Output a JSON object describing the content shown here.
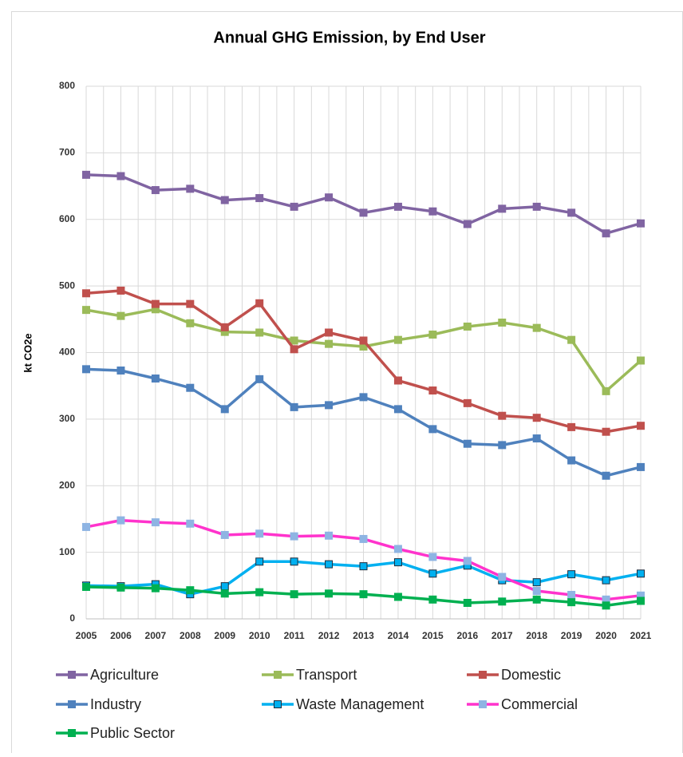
{
  "chart_data": {
    "type": "line",
    "title": "Annual GHG Emission, by End User",
    "ylabel": "kt CO2e",
    "categories": [
      "2005",
      "2006",
      "2007",
      "2008",
      "2009",
      "2010",
      "2011",
      "2012",
      "2013",
      "2014",
      "2015",
      "2016",
      "2017",
      "2018",
      "2019",
      "2020",
      "2021"
    ],
    "ylim": [
      0,
      800
    ],
    "yticks": [
      0,
      100,
      200,
      300,
      400,
      500,
      600,
      700,
      800
    ],
    "grid": true,
    "legend": "bottom",
    "series": [
      {
        "name": "Agriculture",
        "color": "#8064a2",
        "values": [
          667,
          665,
          644,
          646,
          629,
          632,
          619,
          633,
          610,
          619,
          612,
          593,
          616,
          619,
          610,
          579,
          594
        ]
      },
      {
        "name": "Transport",
        "color": "#9bbb59",
        "values": [
          464,
          455,
          465,
          444,
          431,
          430,
          418,
          413,
          409,
          419,
          427,
          439,
          445,
          437,
          419,
          342,
          388
        ]
      },
      {
        "name": "Domestic",
        "color": "#c0504d",
        "values": [
          489,
          493,
          473,
          473,
          438,
          474,
          405,
          430,
          418,
          358,
          343,
          324,
          305,
          302,
          288,
          281,
          290
        ]
      },
      {
        "name": "Industry",
        "color": "#4f81bd",
        "values": [
          375,
          373,
          361,
          347,
          315,
          360,
          318,
          321,
          333,
          315,
          285,
          263,
          261,
          271,
          238,
          215,
          228
        ]
      },
      {
        "name": "Waste Management",
        "color": "#00b0f0",
        "marker_edge": "#1f2d3d",
        "values": [
          50,
          49,
          52,
          37,
          49,
          86,
          86,
          82,
          79,
          85,
          68,
          80,
          58,
          55,
          67,
          58,
          68
        ]
      },
      {
        "name": "Commercial",
        "color": "#ff33cc",
        "marker_color": "#8eb4e3",
        "values": [
          138,
          148,
          145,
          143,
          126,
          128,
          124,
          125,
          120,
          105,
          93,
          87,
          63,
          42,
          36,
          29,
          35
        ]
      },
      {
        "name": "Public Sector",
        "color": "#00b050",
        "values": [
          48,
          47,
          46,
          43,
          38,
          40,
          37,
          38,
          37,
          33,
          29,
          24,
          26,
          29,
          25,
          20,
          27
        ]
      }
    ]
  }
}
